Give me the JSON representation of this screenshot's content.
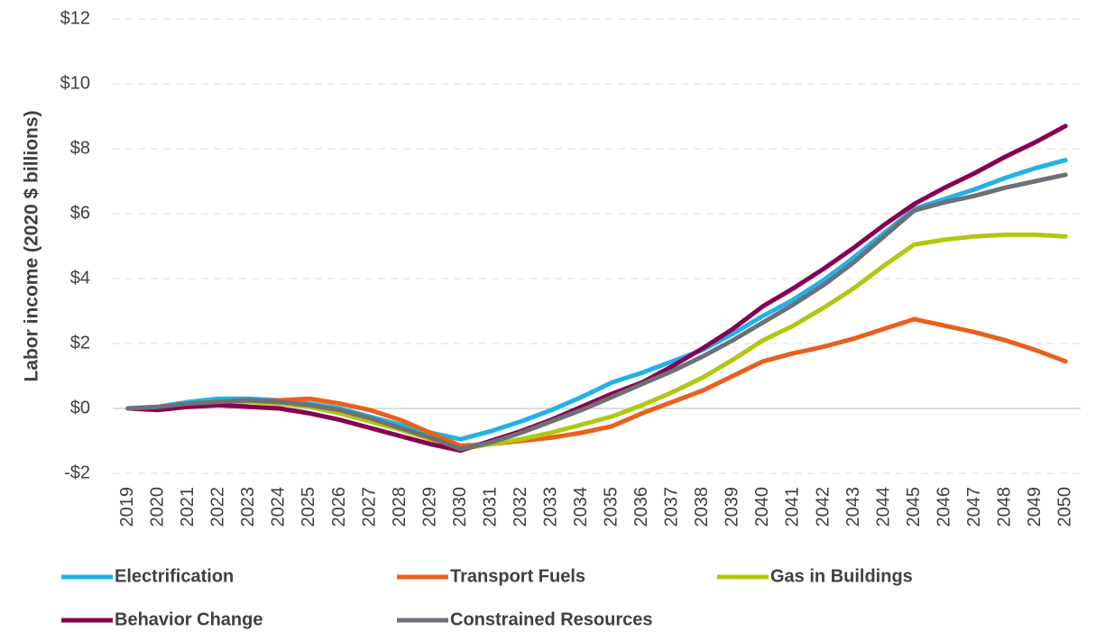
{
  "chart_data": {
    "type": "line",
    "y_axis_label": "Labor income (2020 $ billions)",
    "categories": [
      "2019",
      "2020",
      "2021",
      "2022",
      "2023",
      "2024",
      "2025",
      "2026",
      "2027",
      "2028",
      "2029",
      "2030",
      "2031",
      "2032",
      "2033",
      "2034",
      "2035",
      "2036",
      "2037",
      "2038",
      "2039",
      "2040",
      "2041",
      "2042",
      "2043",
      "2044",
      "2045",
      "2046",
      "2047",
      "2048",
      "2049",
      "2050"
    ],
    "series": [
      {
        "name": "Electrification",
        "color": "#21b2e6",
        "values": [
          0,
          0.05,
          0.2,
          0.3,
          0.3,
          0.25,
          0.15,
          0,
          -0.25,
          -0.5,
          -0.75,
          -0.95,
          -0.7,
          -0.4,
          -0.05,
          0.35,
          0.8,
          1.1,
          1.45,
          1.8,
          2.3,
          2.85,
          3.35,
          3.95,
          4.65,
          5.4,
          6.15,
          6.45,
          6.75,
          7.1,
          7.4,
          7.65
        ]
      },
      {
        "name": "Transport Fuels",
        "color": "#e8601c",
        "values": [
          0,
          0,
          0.05,
          0.1,
          0.2,
          0.25,
          0.3,
          0.15,
          -0.05,
          -0.35,
          -0.75,
          -1.15,
          -1.1,
          -1.0,
          -0.9,
          -0.75,
          -0.55,
          -0.15,
          0.2,
          0.55,
          1.0,
          1.45,
          1.7,
          1.9,
          2.15,
          2.45,
          2.75,
          2.55,
          2.35,
          2.1,
          1.8,
          1.45
        ]
      },
      {
        "name": "Gas in Buildings",
        "color": "#b2c70f",
        "values": [
          0,
          0,
          0.15,
          0.2,
          0.2,
          0.15,
          0.05,
          -0.15,
          -0.4,
          -0.65,
          -0.95,
          -1.25,
          -1.1,
          -0.95,
          -0.75,
          -0.5,
          -0.25,
          0.1,
          0.5,
          0.95,
          1.5,
          2.1,
          2.55,
          3.1,
          3.7,
          4.4,
          5.05,
          5.2,
          5.3,
          5.35,
          5.35,
          5.3
        ]
      },
      {
        "name": "Behavior Change",
        "color": "#870052",
        "values": [
          0,
          -0.05,
          0.05,
          0.1,
          0.05,
          0,
          -0.15,
          -0.35,
          -0.6,
          -0.85,
          -1.1,
          -1.3,
          -1.0,
          -0.7,
          -0.35,
          0.05,
          0.45,
          0.8,
          1.3,
          1.85,
          2.45,
          3.15,
          3.7,
          4.3,
          4.95,
          5.65,
          6.3,
          6.8,
          7.25,
          7.75,
          8.2,
          8.7
        ]
      },
      {
        "name": "Constrained Resources",
        "color": "#6c7178",
        "values": [
          0,
          0.05,
          0.15,
          0.2,
          0.25,
          0.2,
          0.1,
          -0.05,
          -0.3,
          -0.6,
          -0.9,
          -1.25,
          -1.05,
          -0.75,
          -0.4,
          -0.05,
          0.35,
          0.75,
          1.15,
          1.6,
          2.1,
          2.65,
          3.2,
          3.8,
          4.5,
          5.3,
          6.1,
          6.35,
          6.55,
          6.8,
          7.0,
          7.2
        ]
      }
    ],
    "ylim": [
      -2,
      12
    ],
    "yticks": [
      {
        "value": -2,
        "label": "-$2"
      },
      {
        "value": 0,
        "label": "$0"
      },
      {
        "value": 2,
        "label": "$2"
      },
      {
        "value": 4,
        "label": "$4"
      },
      {
        "value": 6,
        "label": "$6"
      },
      {
        "value": 8,
        "label": "$8"
      },
      {
        "value": 10,
        "label": "$10"
      },
      {
        "value": 12,
        "label": "$12"
      }
    ],
    "grid": true,
    "legend": "bottom"
  }
}
